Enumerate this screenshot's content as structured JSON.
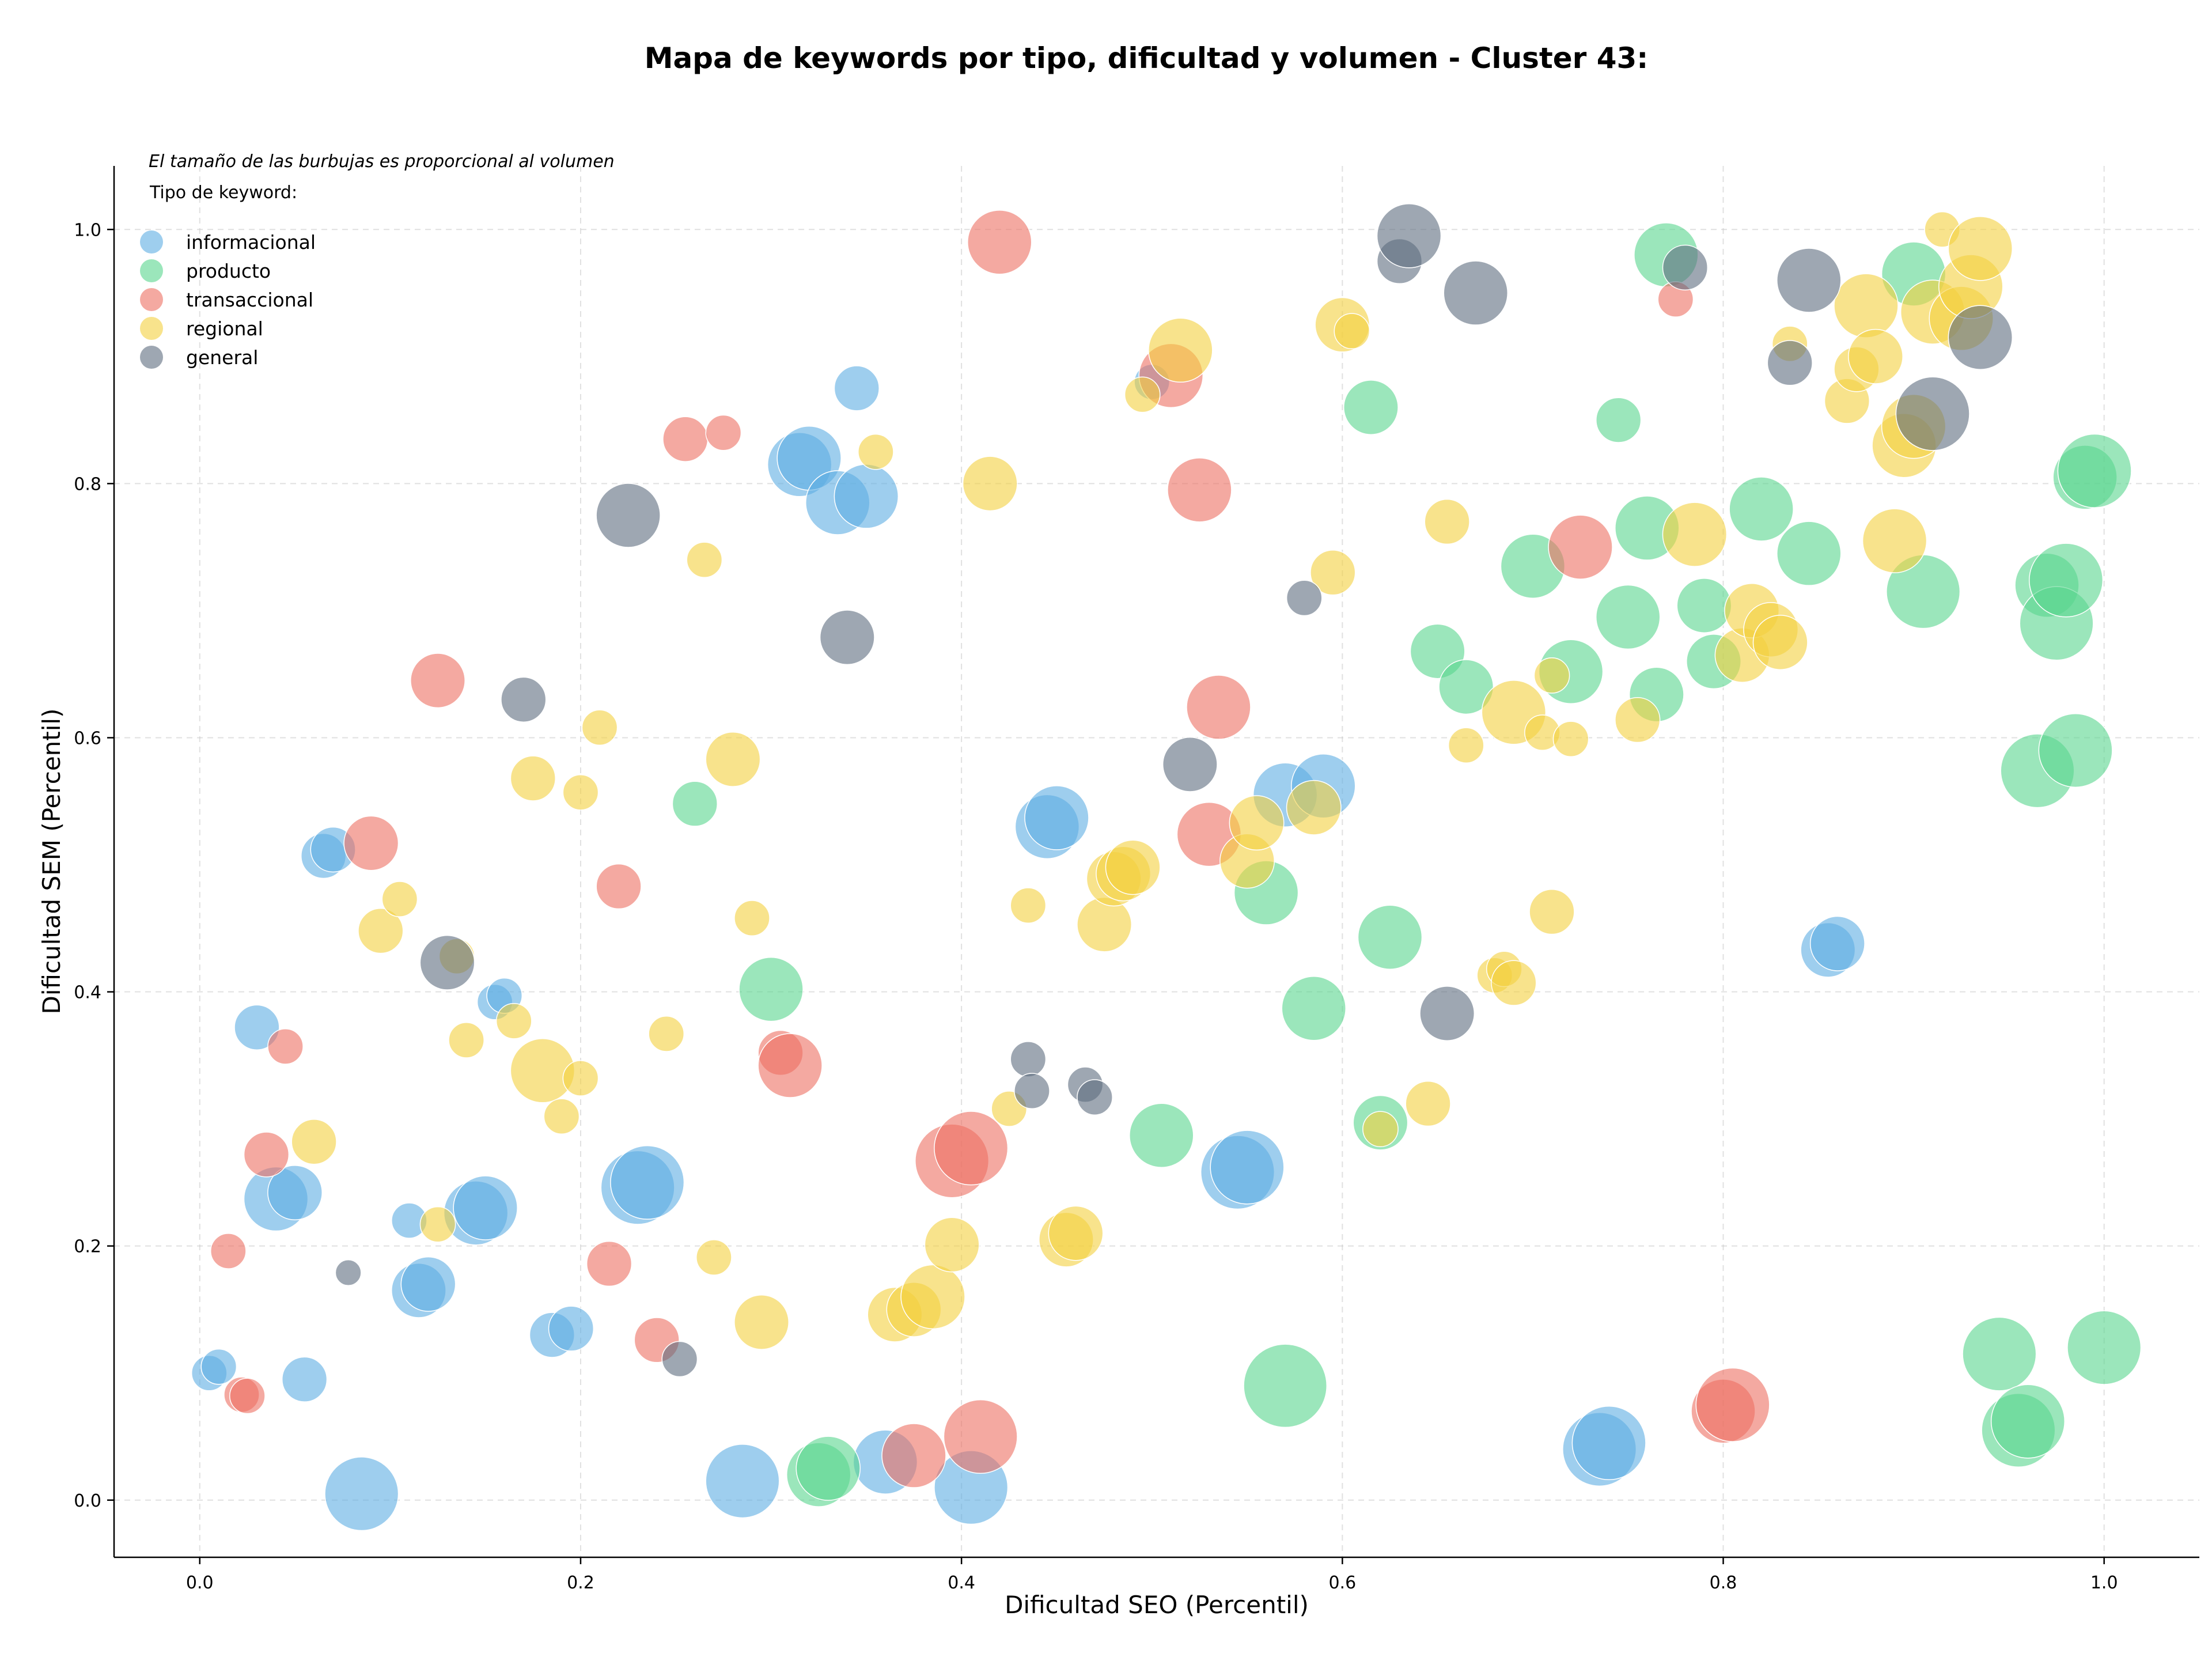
{
  "chart_data": {
    "type": "scatter",
    "title": "Mapa de keywords por tipo, dificultad y volumen - Cluster 43:",
    "xlabel": "Dificultad SEO (Percentil)",
    "ylabel": "Dificultad SEM (Percentil)",
    "xlim": [
      -0.045,
      1.05
    ],
    "ylim": [
      -0.045,
      1.05
    ],
    "x_ticks": [
      "0.0",
      "0.2",
      "0.4",
      "0.6",
      "0.8",
      "1.0"
    ],
    "y_ticks": [
      "0.0",
      "0.2",
      "0.4",
      "0.6",
      "0.8",
      "1.0"
    ],
    "grid": true,
    "size_note": "El tamaño de las burbujas es proporcional al volumen",
    "legend_title": "Tipo de keyword:",
    "legend_position": "top-left",
    "series": [
      {
        "name": "informacional",
        "color": "#5DADE2",
        "points": [
          [
            0.005,
            0.1,
            2
          ],
          [
            0.01,
            0.105,
            2
          ],
          [
            0.03,
            0.372,
            3
          ],
          [
            0.04,
            0.237,
            5
          ],
          [
            0.05,
            0.242,
            4
          ],
          [
            0.055,
            0.095,
            3
          ],
          [
            0.065,
            0.507,
            3
          ],
          [
            0.07,
            0.512,
            3
          ],
          [
            0.085,
            0.005,
            6
          ],
          [
            0.11,
            0.22,
            2
          ],
          [
            0.115,
            0.165,
            4
          ],
          [
            0.12,
            0.17,
            4
          ],
          [
            0.145,
            0.226,
            5
          ],
          [
            0.15,
            0.23,
            5
          ],
          [
            0.155,
            0.392,
            2
          ],
          [
            0.16,
            0.397,
            2
          ],
          [
            0.185,
            0.13,
            3
          ],
          [
            0.195,
            0.135,
            3
          ],
          [
            0.23,
            0.246,
            6
          ],
          [
            0.235,
            0.25,
            6
          ],
          [
            0.285,
            0.015,
            6
          ],
          [
            0.315,
            0.815,
            5
          ],
          [
            0.32,
            0.82,
            5
          ],
          [
            0.335,
            0.785,
            5
          ],
          [
            0.345,
            0.875,
            3
          ],
          [
            0.35,
            0.79,
            5
          ],
          [
            0.36,
            0.03,
            5
          ],
          [
            0.405,
            0.01,
            6
          ],
          [
            0.445,
            0.53,
            5
          ],
          [
            0.45,
            0.537,
            5
          ],
          [
            0.5,
            0.88,
            2
          ],
          [
            0.545,
            0.258,
            6
          ],
          [
            0.55,
            0.262,
            6
          ],
          [
            0.57,
            0.555,
            5
          ],
          [
            0.59,
            0.562,
            5
          ],
          [
            0.735,
            0.04,
            6
          ],
          [
            0.74,
            0.045,
            6
          ],
          [
            0.855,
            0.433,
            4
          ],
          [
            0.86,
            0.438,
            4
          ]
        ]
      },
      {
        "name": "producto",
        "color": "#58D68D",
        "points": [
          [
            0.26,
            0.548,
            3
          ],
          [
            0.3,
            0.402,
            5
          ],
          [
            0.325,
            0.02,
            5
          ],
          [
            0.33,
            0.025,
            5
          ],
          [
            0.505,
            0.287,
            5
          ],
          [
            0.56,
            0.478,
            5
          ],
          [
            0.57,
            0.09,
            7
          ],
          [
            0.585,
            0.387,
            5
          ],
          [
            0.615,
            0.86,
            4
          ],
          [
            0.62,
            0.297,
            4
          ],
          [
            0.625,
            0.443,
            5
          ],
          [
            0.65,
            0.668,
            4
          ],
          [
            0.665,
            0.64,
            4
          ],
          [
            0.7,
            0.735,
            5
          ],
          [
            0.72,
            0.652,
            5
          ],
          [
            0.745,
            0.85,
            3
          ],
          [
            0.75,
            0.695,
            5
          ],
          [
            0.76,
            0.765,
            5
          ],
          [
            0.765,
            0.634,
            4
          ],
          [
            0.77,
            0.98,
            5
          ],
          [
            0.79,
            0.704,
            4
          ],
          [
            0.795,
            0.66,
            4
          ],
          [
            0.82,
            0.78,
            5
          ],
          [
            0.845,
            0.745,
            5
          ],
          [
            0.9,
            0.965,
            5
          ],
          [
            0.905,
            0.715,
            6
          ],
          [
            0.945,
            0.115,
            6
          ],
          [
            0.955,
            0.055,
            6
          ],
          [
            0.96,
            0.062,
            6
          ],
          [
            0.965,
            0.574,
            6
          ],
          [
            0.97,
            0.72,
            5
          ],
          [
            0.975,
            0.69,
            6
          ],
          [
            0.98,
            0.724,
            6
          ],
          [
            0.985,
            0.59,
            6
          ],
          [
            0.99,
            0.805,
            5
          ],
          [
            0.995,
            0.81,
            6
          ],
          [
            1.0,
            0.12,
            6
          ]
        ]
      },
      {
        "name": "transaccional",
        "color": "#EC7063",
        "points": [
          [
            0.015,
            0.196,
            2
          ],
          [
            0.022,
            0.083,
            2
          ],
          [
            0.025,
            0.082,
            2
          ],
          [
            0.035,
            0.272,
            3
          ],
          [
            0.045,
            0.357,
            2
          ],
          [
            0.09,
            0.517,
            4
          ],
          [
            0.125,
            0.645,
            4
          ],
          [
            0.215,
            0.186,
            3
          ],
          [
            0.22,
            0.483,
            3
          ],
          [
            0.24,
            0.126,
            3
          ],
          [
            0.255,
            0.835,
            3
          ],
          [
            0.275,
            0.84,
            2
          ],
          [
            0.305,
            0.352,
            3
          ],
          [
            0.31,
            0.342,
            5
          ],
          [
            0.375,
            0.035,
            5
          ],
          [
            0.395,
            0.267,
            6
          ],
          [
            0.405,
            0.277,
            6
          ],
          [
            0.41,
            0.05,
            6
          ],
          [
            0.42,
            0.99,
            5
          ],
          [
            0.51,
            0.885,
            5
          ],
          [
            0.525,
            0.795,
            5
          ],
          [
            0.53,
            0.524,
            5
          ],
          [
            0.535,
            0.624,
            5
          ],
          [
            0.725,
            0.75,
            5
          ],
          [
            0.775,
            0.945,
            2
          ],
          [
            0.8,
            0.07,
            5
          ],
          [
            0.805,
            0.075,
            6
          ]
        ]
      },
      {
        "name": "regional",
        "color": "#F4D03F",
        "points": [
          [
            0.06,
            0.282,
            3
          ],
          [
            0.095,
            0.448,
            3
          ],
          [
            0.105,
            0.473,
            2
          ],
          [
            0.125,
            0.217,
            2
          ],
          [
            0.135,
            0.428,
            2
          ],
          [
            0.14,
            0.362,
            2
          ],
          [
            0.165,
            0.377,
            2
          ],
          [
            0.175,
            0.568,
            3
          ],
          [
            0.18,
            0.338,
            5
          ],
          [
            0.19,
            0.302,
            2
          ],
          [
            0.2,
            0.332,
            2
          ],
          [
            0.2,
            0.557,
            2
          ],
          [
            0.21,
            0.608,
            2
          ],
          [
            0.245,
            0.367,
            2
          ],
          [
            0.265,
            0.74,
            2
          ],
          [
            0.27,
            0.191,
            2
          ],
          [
            0.28,
            0.583,
            4
          ],
          [
            0.29,
            0.458,
            2
          ],
          [
            0.295,
            0.14,
            4
          ],
          [
            0.355,
            0.825,
            2
          ],
          [
            0.365,
            0.146,
            4
          ],
          [
            0.375,
            0.15,
            4
          ],
          [
            0.385,
            0.16,
            5
          ],
          [
            0.395,
            0.201,
            4
          ],
          [
            0.415,
            0.8,
            4
          ],
          [
            0.425,
            0.308,
            2
          ],
          [
            0.435,
            0.468,
            2
          ],
          [
            0.455,
            0.205,
            4
          ],
          [
            0.46,
            0.21,
            4
          ],
          [
            0.475,
            0.453,
            4
          ],
          [
            0.48,
            0.489,
            4
          ],
          [
            0.485,
            0.493,
            4
          ],
          [
            0.49,
            0.498,
            4
          ],
          [
            0.495,
            0.87,
            2
          ],
          [
            0.515,
            0.905,
            5
          ],
          [
            0.55,
            0.503,
            4
          ],
          [
            0.555,
            0.533,
            4
          ],
          [
            0.585,
            0.545,
            4
          ],
          [
            0.595,
            0.73,
            3
          ],
          [
            0.6,
            0.925,
            4
          ],
          [
            0.605,
            0.92,
            2
          ],
          [
            0.62,
            0.292,
            2
          ],
          [
            0.645,
            0.312,
            3
          ],
          [
            0.655,
            0.77,
            3
          ],
          [
            0.665,
            0.594,
            2
          ],
          [
            0.68,
            0.413,
            2
          ],
          [
            0.685,
            0.418,
            2
          ],
          [
            0.69,
            0.62,
            5
          ],
          [
            0.69,
            0.407,
            3
          ],
          [
            0.705,
            0.604,
            2
          ],
          [
            0.71,
            0.463,
            3
          ],
          [
            0.71,
            0.649,
            2
          ],
          [
            0.72,
            0.599,
            2
          ],
          [
            0.755,
            0.614,
            3
          ],
          [
            0.785,
            0.76,
            5
          ],
          [
            0.81,
            0.665,
            4
          ],
          [
            0.815,
            0.7,
            4
          ],
          [
            0.825,
            0.685,
            4
          ],
          [
            0.83,
            0.675,
            4
          ],
          [
            0.835,
            0.91,
            2
          ],
          [
            0.865,
            0.865,
            3
          ],
          [
            0.87,
            0.89,
            3
          ],
          [
            0.875,
            0.94,
            5
          ],
          [
            0.88,
            0.9,
            4
          ],
          [
            0.89,
            0.755,
            5
          ],
          [
            0.895,
            0.83,
            5
          ],
          [
            0.9,
            0.845,
            5
          ],
          [
            0.91,
            0.935,
            5
          ],
          [
            0.915,
            1.0,
            2
          ],
          [
            0.925,
            0.93,
            5
          ],
          [
            0.93,
            0.955,
            5
          ],
          [
            0.935,
            0.985,
            5
          ]
        ]
      },
      {
        "name": "general",
        "color": "#5D6D7E",
        "points": [
          [
            0.078,
            0.179,
            1
          ],
          [
            0.13,
            0.423,
            4
          ],
          [
            0.17,
            0.63,
            3
          ],
          [
            0.225,
            0.775,
            5
          ],
          [
            0.252,
            0.111,
            2
          ],
          [
            0.34,
            0.679,
            4
          ],
          [
            0.435,
            0.347,
            2
          ],
          [
            0.437,
            0.322,
            2
          ],
          [
            0.465,
            0.327,
            2
          ],
          [
            0.47,
            0.317,
            2
          ],
          [
            0.52,
            0.579,
            4
          ],
          [
            0.58,
            0.71,
            2
          ],
          [
            0.63,
            0.975,
            3
          ],
          [
            0.635,
            0.995,
            5
          ],
          [
            0.655,
            0.383,
            4
          ],
          [
            0.67,
            0.95,
            5
          ],
          [
            0.78,
            0.97,
            3
          ],
          [
            0.835,
            0.895,
            3
          ],
          [
            0.845,
            0.96,
            5
          ],
          [
            0.91,
            0.855,
            6
          ],
          [
            0.935,
            0.915,
            5
          ]
        ]
      }
    ]
  }
}
